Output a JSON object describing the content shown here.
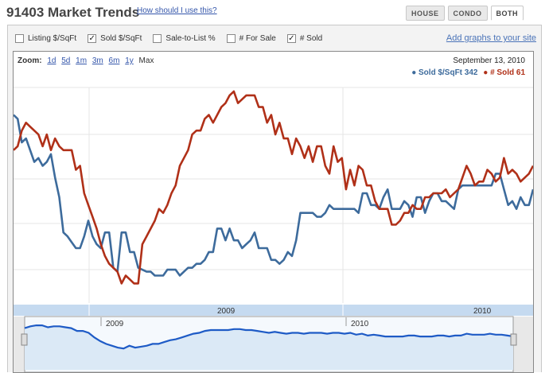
{
  "header": {
    "title": "91403 Market Trends",
    "help_link": "How should I use this?",
    "tabs": [
      {
        "label": "HOUSE",
        "active": false
      },
      {
        "label": "CONDO",
        "active": false
      },
      {
        "label": "BOTH",
        "active": true
      }
    ]
  },
  "toolbar": {
    "options": [
      {
        "label": "Listing $/SqFt",
        "checked": false
      },
      {
        "label": "Sold $/SqFt",
        "checked": true
      },
      {
        "label": "Sale-to-List %",
        "checked": false
      },
      {
        "label": "# For Sale",
        "checked": false
      },
      {
        "label": "# Sold",
        "checked": true
      }
    ],
    "add_graphs": "Add graphs to your site"
  },
  "zoom": {
    "label": "Zoom:",
    "options": [
      "1d",
      "5d",
      "1m",
      "3m",
      "6m",
      "1y"
    ],
    "current": "Max"
  },
  "readout": {
    "date": "September 13, 2010",
    "sold_sqft": "Sold $/SqFt 342",
    "num_sold": "# Sold 61"
  },
  "colors": {
    "sold_sqft": "#3d6b9c",
    "num_sold": "#b03018",
    "axis_band": "#c5daf0",
    "navigator_fill": "#dbe9f6"
  },
  "chart_data": {
    "type": "line",
    "x_axis_labels": [
      "2009",
      "2010"
    ],
    "navigator_labels": [
      "2009",
      "2010"
    ],
    "series": [
      {
        "name": "Sold $/SqFt",
        "color": "#3d6b9c",
        "values": [
          96,
          94,
          82,
          84,
          78,
          72,
          74,
          70,
          72,
          76,
          64,
          54,
          36,
          34,
          31,
          28,
          28,
          34,
          42,
          34,
          30,
          28,
          36,
          36,
          18,
          16,
          36,
          36,
          26,
          26,
          18,
          17,
          16,
          16,
          14,
          14,
          14,
          17,
          17,
          17,
          14,
          16,
          18,
          18,
          20,
          20,
          22,
          26,
          26,
          38,
          38,
          32,
          38,
          32,
          32,
          28,
          30,
          32,
          36,
          28,
          28,
          28,
          22,
          22,
          20,
          22,
          26,
          24,
          32,
          46,
          46,
          46,
          46,
          44,
          44,
          46,
          50,
          48,
          48,
          48,
          48,
          48,
          48,
          46,
          56,
          56,
          50,
          50,
          48,
          54,
          58,
          48,
          48,
          48,
          52,
          50,
          44,
          54,
          54,
          46,
          52,
          56,
          56,
          52,
          52,
          50,
          48,
          58,
          60,
          60,
          60,
          60,
          60,
          60,
          60,
          60,
          66,
          66,
          58,
          50,
          52,
          48,
          54,
          50,
          50,
          58
        ]
      },
      {
        "name": "# Sold",
        "color": "#b03018",
        "values": [
          78,
          80,
          88,
          92,
          90,
          88,
          86,
          80,
          86,
          78,
          84,
          80,
          78,
          78,
          78,
          68,
          70,
          56,
          50,
          44,
          38,
          30,
          24,
          20,
          18,
          16,
          10,
          14,
          12,
          10,
          10,
          30,
          34,
          38,
          42,
          48,
          46,
          50,
          56,
          60,
          70,
          74,
          78,
          86,
          88,
          88,
          94,
          96,
          92,
          96,
          100,
          102,
          106,
          108,
          102,
          104,
          106,
          106,
          106,
          100,
          100,
          92,
          96,
          86,
          92,
          84,
          84,
          76,
          84,
          80,
          74,
          80,
          72,
          80,
          80,
          70,
          66,
          80,
          72,
          74,
          58,
          68,
          60,
          70,
          68,
          60,
          60,
          52,
          48,
          48,
          48,
          40,
          40,
          42,
          46,
          46,
          50,
          48,
          48,
          54,
          54,
          56,
          56,
          56,
          58,
          54,
          56,
          58,
          64,
          70,
          66,
          60,
          62,
          62,
          68,
          66,
          62,
          64,
          74,
          66,
          68,
          66,
          62,
          64,
          66,
          70
        ]
      }
    ],
    "navigator_values": [
      90,
      94,
      96,
      96,
      92,
      94,
      94,
      92,
      90,
      84,
      84,
      80,
      70,
      62,
      56,
      52,
      48,
      46,
      52,
      48,
      50,
      52,
      56,
      56,
      60,
      64,
      66,
      70,
      74,
      78,
      80,
      84,
      86,
      86,
      86,
      86,
      88,
      88,
      86,
      86,
      84,
      82,
      80,
      82,
      80,
      78,
      80,
      80,
      78,
      80,
      80,
      80,
      78,
      80,
      80,
      78,
      80,
      76,
      78,
      74,
      76,
      74,
      72,
      72,
      72,
      72,
      74,
      74,
      72,
      72,
      72,
      74,
      74,
      72,
      74,
      74,
      78,
      76,
      76,
      76,
      78,
      76,
      76,
      74,
      72
    ]
  }
}
